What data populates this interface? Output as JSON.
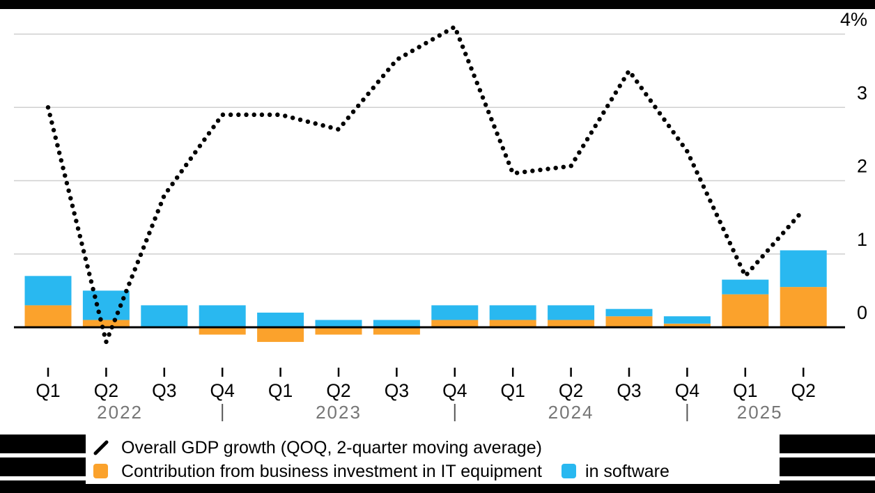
{
  "legend": {
    "gdp_line": "Overall GDP growth (QOQ, 2-quarter moving average)",
    "equipment": "Contribution from business investment in IT equipment",
    "software": "in software"
  },
  "colors": {
    "equipment_orange": "#FBA22C",
    "software_blue": "#29B8F0",
    "line_black": "#000000",
    "gridline_gray": "#cfcfcf",
    "year_label_gray": "#767676",
    "separator_gray": "#555555"
  },
  "chart_data": {
    "type": "bar+line",
    "categories": [
      "Q1 2022",
      "Q2 2022",
      "Q3 2022",
      "Q4 2022",
      "Q1 2023",
      "Q2 2023",
      "Q3 2023",
      "Q4 2023",
      "Q1 2024",
      "Q2 2024",
      "Q3 2024",
      "Q4 2024",
      "Q1 2025",
      "Q2 2025"
    ],
    "series": [
      {
        "name": "Overall GDP growth (QOQ, 2-quarter moving average)",
        "type": "line",
        "style": "dotted",
        "color": "#000000",
        "values": [
          3.0,
          -0.2,
          1.8,
          2.9,
          2.9,
          2.7,
          3.65,
          4.1,
          2.1,
          2.2,
          3.5,
          2.4,
          0.7,
          1.6
        ]
      },
      {
        "name": "Contribution from business investment in IT equipment",
        "type": "bar",
        "stack": "contribution",
        "color": "#FBA22C",
        "values": [
          0.3,
          0.1,
          0.0,
          -0.1,
          -0.2,
          -0.1,
          -0.1,
          0.1,
          0.1,
          0.1,
          0.15,
          0.05,
          0.45,
          0.55
        ]
      },
      {
        "name": "in software",
        "type": "bar",
        "stack": "contribution",
        "color": "#29B8F0",
        "values": [
          0.4,
          0.4,
          0.3,
          0.3,
          0.2,
          0.1,
          0.1,
          0.2,
          0.2,
          0.2,
          0.1,
          0.1,
          0.2,
          0.5
        ]
      }
    ],
    "y_ticks": [
      4,
      3,
      2,
      1,
      0
    ],
    "y_tick_labels": [
      "4%",
      "3",
      "2",
      "1",
      "0"
    ],
    "x_year_labels": [
      "2022",
      "2023",
      "2024",
      "2025"
    ],
    "ylim": [
      -0.6,
      4.3
    ],
    "grid": "horizontal",
    "legend_position": "bottom",
    "units": "percent"
  }
}
